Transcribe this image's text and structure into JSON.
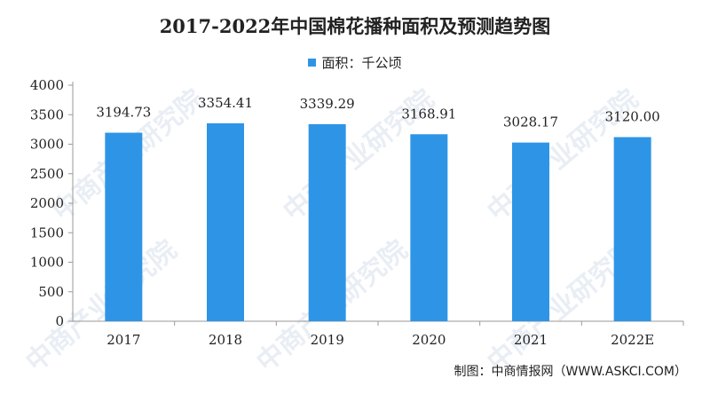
{
  "chart_data": {
    "type": "bar",
    "title": "2017-2022年中国棉花播种面积及预测趋势图",
    "categories": [
      "2017",
      "2018",
      "2019",
      "2020",
      "2021",
      "2022E"
    ],
    "series": [
      {
        "name": "面积：千公顷",
        "values": [
          3194.73,
          3354.41,
          3339.29,
          3168.91,
          3028.17,
          3120.0
        ]
      }
    ],
    "value_labels": [
      "3194.73",
      "3354.41",
      "3339.29",
      "3168.91",
      "3028.17",
      "3120.00"
    ],
    "y_ticks": [
      "0",
      "500",
      "1000",
      "1500",
      "2000",
      "2500",
      "3000",
      "3500",
      "4000"
    ],
    "ylim": [
      0,
      4000
    ],
    "xlabel": "",
    "ylabel": "",
    "legend_position": "top-center",
    "grid": false,
    "bar_color": "#2e95e6"
  },
  "source": "制图：中商情报网（WWW.ASKCI.COM）",
  "watermark": "中商产业研究院"
}
